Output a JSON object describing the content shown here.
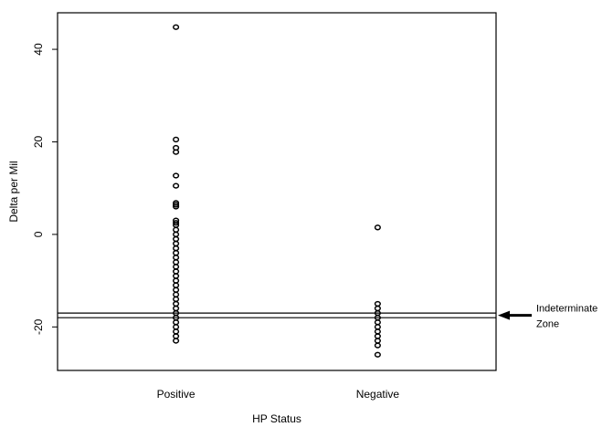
{
  "chart_data": {
    "type": "strip",
    "x_label": "HP Status",
    "y_label": "Delta per Mil",
    "categories": [
      "Positive",
      "Negative"
    ],
    "values": [
      [
        44.8,
        20.5,
        18.7,
        17.8,
        12.7,
        10.5,
        6.8,
        6.4,
        6.0,
        3.0,
        2.5,
        2,
        1,
        0,
        -1,
        -2,
        -3,
        -4,
        -5,
        -6,
        -7,
        -8,
        -9,
        -10,
        -11,
        -12,
        -13,
        -14,
        -15,
        -16,
        -17,
        -18,
        -19,
        -20,
        -21,
        -22,
        -23
      ],
      [
        1.5,
        -15,
        -16,
        -17,
        -18,
        -19,
        -20,
        -21,
        -22,
        -23,
        -24,
        -26
      ]
    ],
    "color": "#000000",
    "ylim": [
      -29.4,
      47.9
    ],
    "yticks": [
      -20,
      0,
      20,
      40
    ],
    "reference_lines": [
      -17,
      -18
    ],
    "annotation": [
      "Indeterminate",
      "Zone"
    ]
  }
}
